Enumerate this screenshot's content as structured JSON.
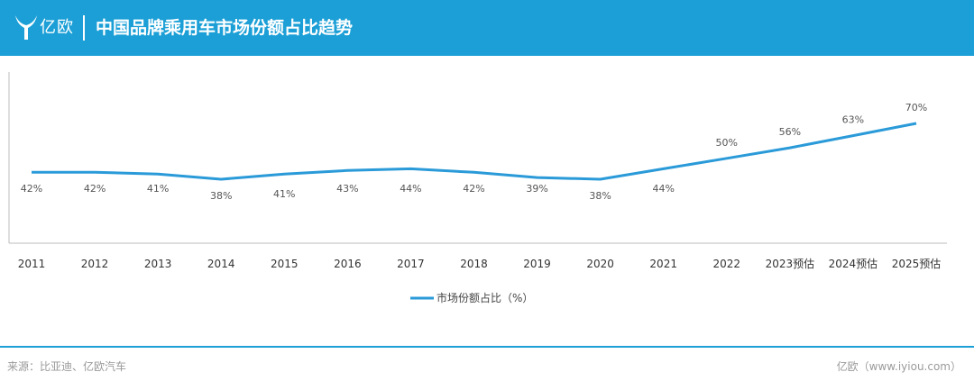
{
  "header": {
    "brand": "亿欧",
    "title": "中国品牌乘用车市场份额占比趋势"
  },
  "colors": {
    "accent": "#1b9fd6",
    "line": "#2a9ad8",
    "text": "#333333"
  },
  "chart_data": {
    "type": "line",
    "categories": [
      "2011",
      "2012",
      "2013",
      "2014",
      "2015",
      "2016",
      "2017",
      "2018",
      "2019",
      "2020",
      "2021",
      "2022",
      "2023预估",
      "2024预估",
      "2025预估"
    ],
    "series": [
      {
        "name": "市场份额占比（%）",
        "values": [
          42,
          42,
          41,
          38,
          41,
          43,
          44,
          42,
          39,
          38,
          44,
          50,
          56,
          63,
          70
        ],
        "labels": [
          "42%",
          "42%",
          "41%",
          "38%",
          "41%",
          "43%",
          "44%",
          "42%",
          "39%",
          "38%",
          "44%",
          "50%",
          "56%",
          "63%",
          "70%"
        ]
      }
    ],
    "title": "中国品牌乘用车市场份额占比趋势",
    "xlabel": "",
    "ylabel": "",
    "grid": false,
    "legend_position": "bottom"
  },
  "footer": {
    "source": "来源：比亚迪、亿欧汽车",
    "credit": "亿欧（www.iyiou.com）"
  }
}
